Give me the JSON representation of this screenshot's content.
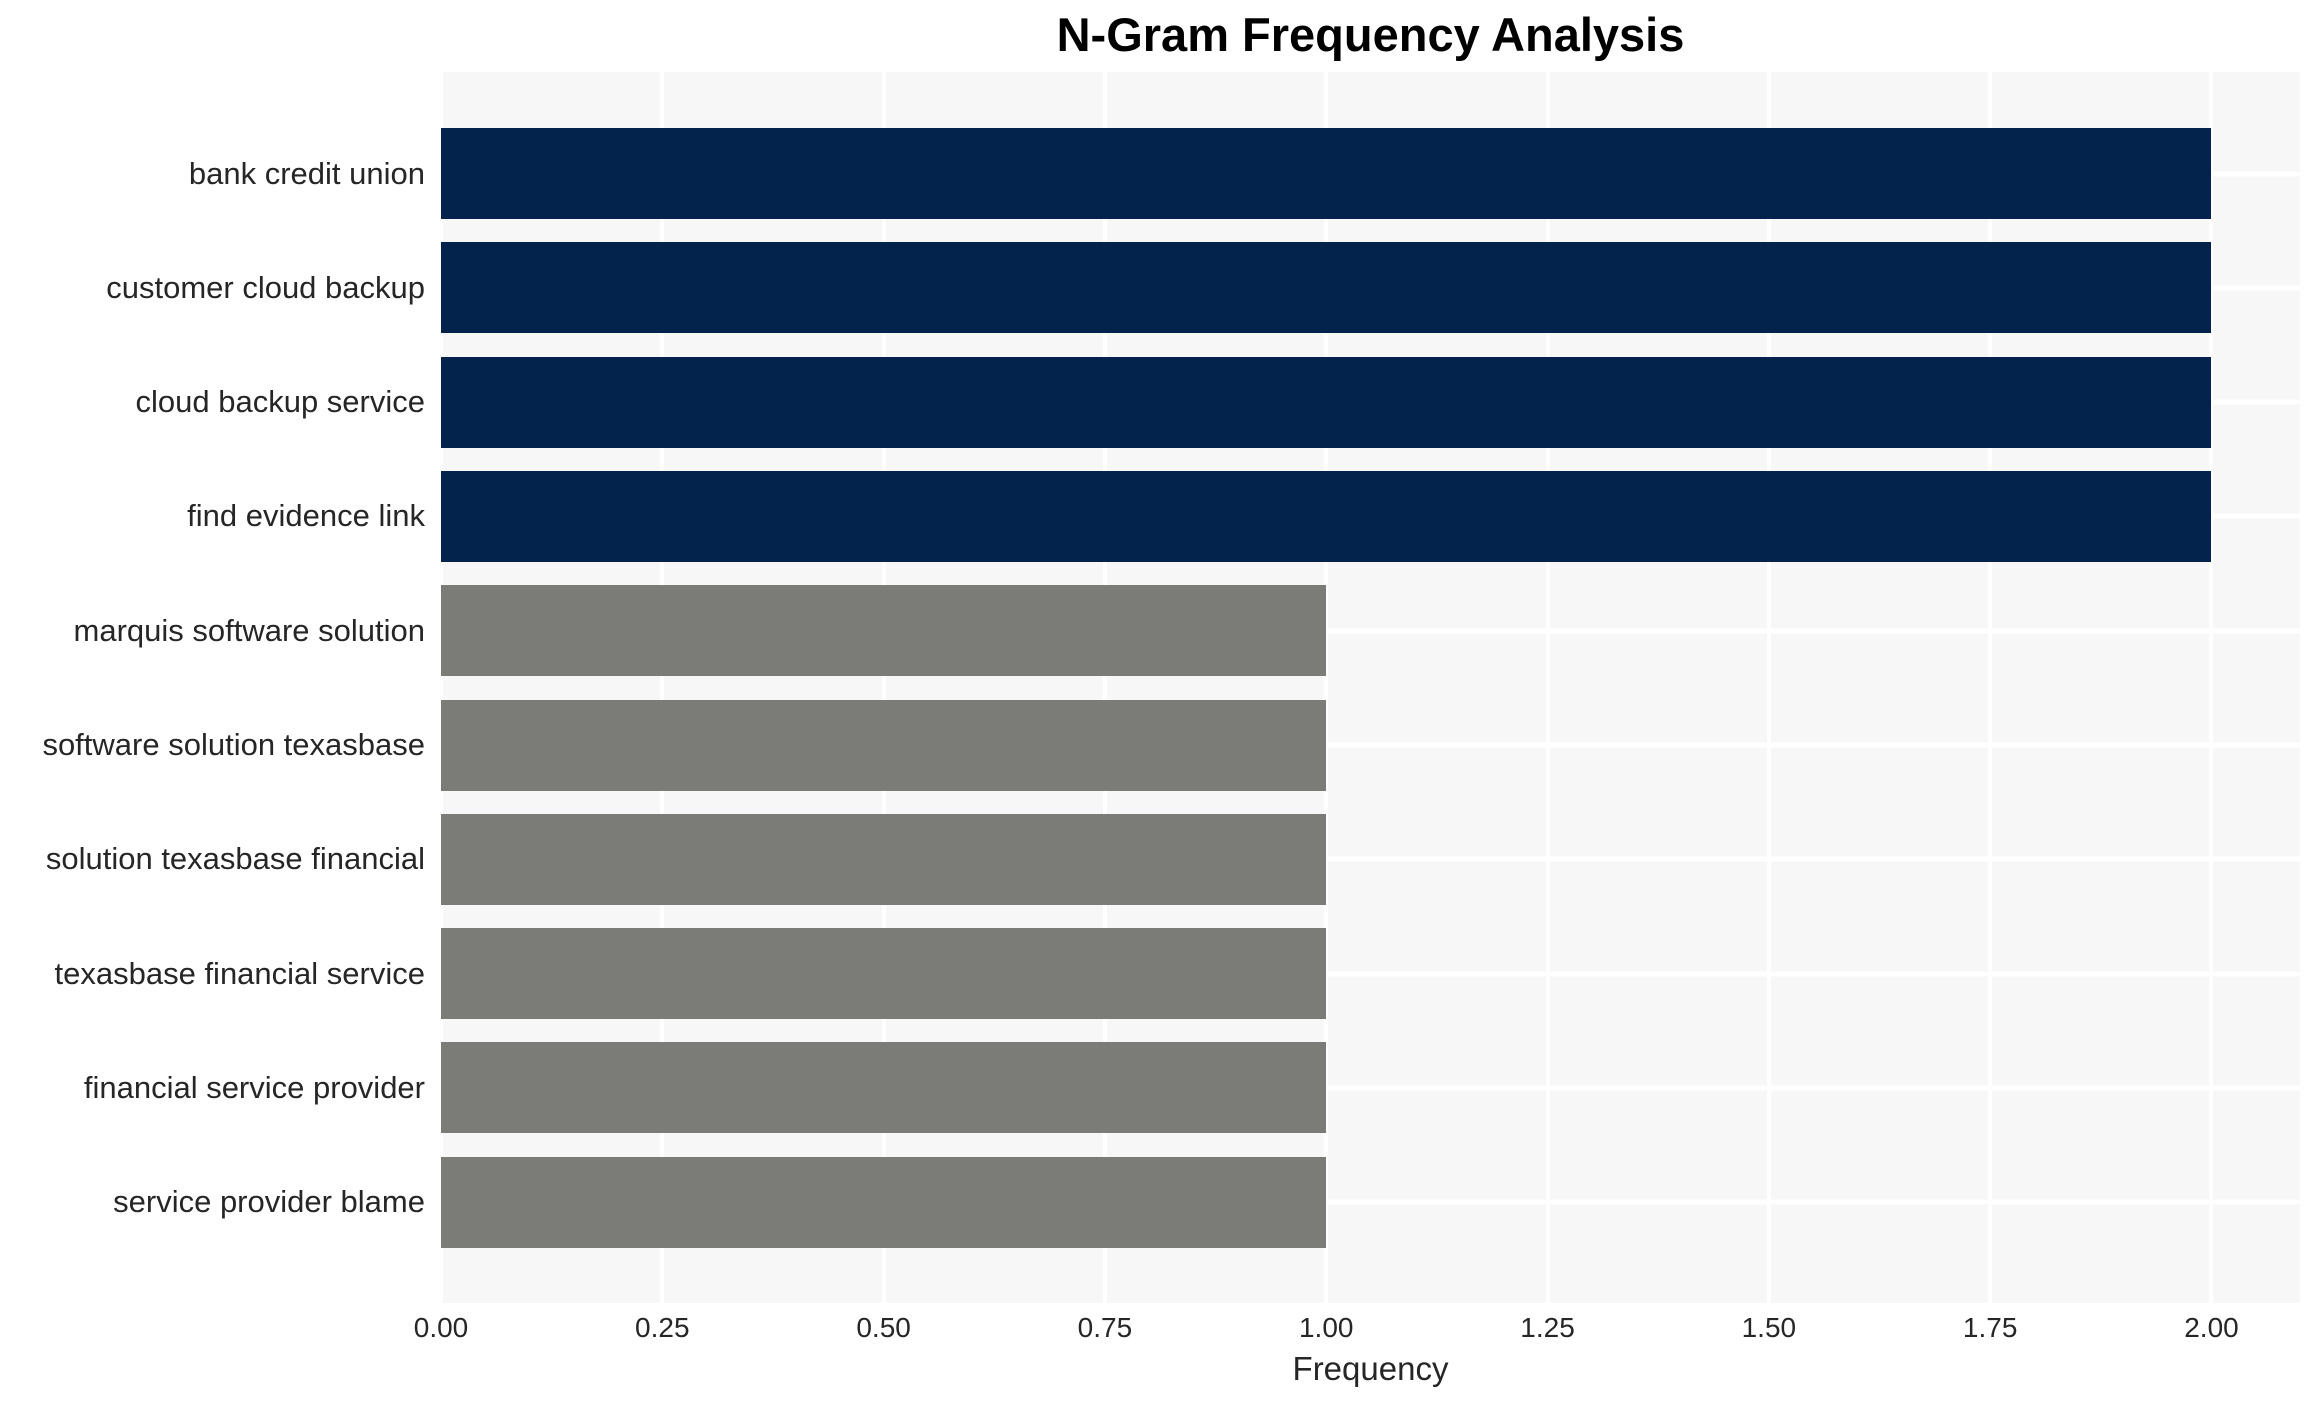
{
  "chart_data": {
    "type": "bar",
    "orientation": "horizontal",
    "title": "N-Gram Frequency Analysis",
    "xlabel": "Frequency",
    "ylabel": "",
    "categories": [
      "bank credit union",
      "customer cloud backup",
      "cloud backup service",
      "find evidence link",
      "marquis software solution",
      "software solution texasbase",
      "solution texasbase financial",
      "texasbase financial service",
      "financial service provider",
      "service provider blame"
    ],
    "values": [
      2.0,
      2.0,
      2.0,
      2.0,
      1.0,
      1.0,
      1.0,
      1.0,
      1.0,
      1.0
    ],
    "bar_colors": [
      "#03234d",
      "#03234d",
      "#03234d",
      "#03234d",
      "#7b7b77",
      "#7b7b77",
      "#7b7b77",
      "#7b7b77",
      "#7b7b77",
      "#7b7b77"
    ],
    "xlim": [
      0,
      2.1
    ],
    "xticks": [
      0,
      0.25,
      0.5,
      0.75,
      1.0,
      1.25,
      1.5,
      1.75,
      2.0
    ],
    "xtick_labels": [
      "0.00",
      "0.25",
      "0.50",
      "0.75",
      "1.00",
      "1.25",
      "1.50",
      "1.75",
      "2.00"
    ],
    "grid": true,
    "legend_position": "none",
    "colors": {
      "high_value_bar": "#03234d",
      "low_value_bar": "#7b7b77",
      "plot_background": "#f7f7f7",
      "gridline": "#ffffff",
      "text": "#262626",
      "page_background": "#ffffff"
    }
  }
}
